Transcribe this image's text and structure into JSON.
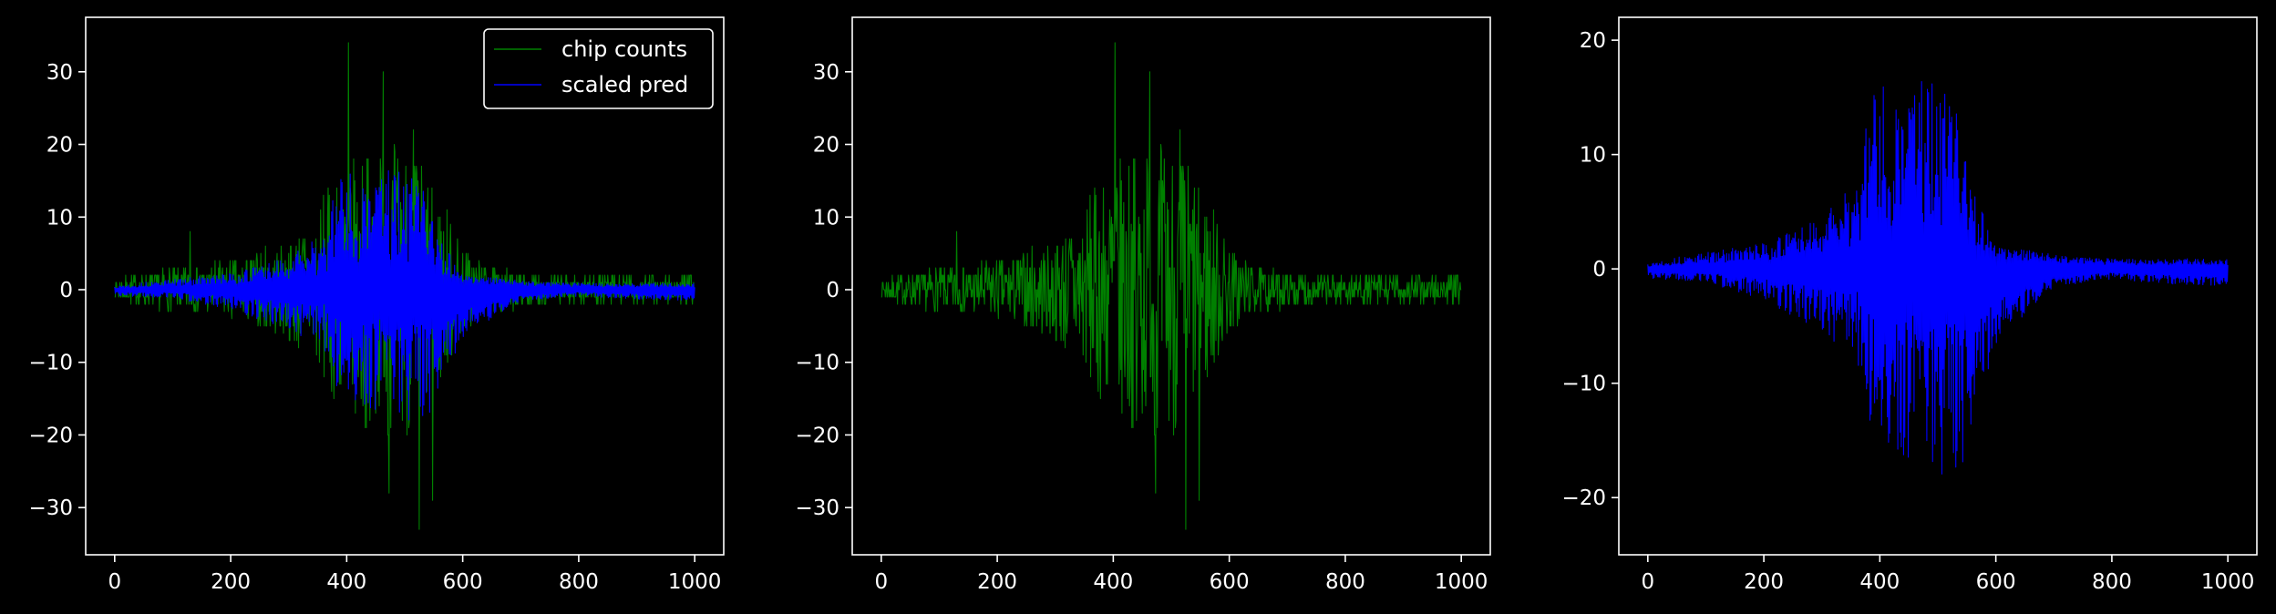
{
  "figure": {
    "background": "#000000",
    "foreground": "#ffffff"
  },
  "legend": {
    "placement": "top-right of first panel",
    "entries": [
      {
        "label": "chip counts",
        "color": "#008000"
      },
      {
        "label": "scaled pred",
        "color": "#0000ff"
      }
    ]
  },
  "chart_data": [
    {
      "type": "line",
      "panel": 1,
      "grid": false,
      "title": "",
      "xlabel": "",
      "ylabel": "",
      "x": {
        "start": 0,
        "end": 1000,
        "count": 1001
      },
      "xlim": [
        -50,
        1050
      ],
      "ylim": [
        -36.5,
        37.5
      ],
      "xticks": [
        0,
        200,
        400,
        600,
        800,
        1000
      ],
      "yticks": [
        -30,
        -20,
        -10,
        0,
        10,
        20,
        30
      ],
      "ytick_labels": [
        "−30",
        "−20",
        "−10",
        "0",
        "10",
        "20",
        "30"
      ],
      "series": [
        {
          "name": "chip counts",
          "color": "#008000",
          "kind": "noisy-counts",
          "envelope_knots_x": [
            0,
            100,
            200,
            300,
            350,
            400,
            450,
            500,
            550,
            600,
            650,
            700,
            800,
            900,
            1000
          ],
          "envelope_knots_y": [
            1.5,
            3,
            4,
            7,
            12,
            18,
            20,
            21,
            16,
            6,
            3,
            2.5,
            2,
            2,
            2
          ],
          "peaks": [
            {
              "x": 403,
              "y": 34
            },
            {
              "x": 463,
              "y": 30
            },
            {
              "x": 515,
              "y": 22
            },
            {
              "x": 473,
              "y": -28
            },
            {
              "x": 525,
              "y": -33
            },
            {
              "x": 548,
              "y": -29
            },
            {
              "x": 440,
              "y": -18
            },
            {
              "x": 130,
              "y": 8
            }
          ]
        },
        {
          "name": "scaled pred",
          "color": "#0000ff",
          "kind": "two-strand-prediction",
          "upper_knots_x": [
            0,
            100,
            200,
            300,
            360,
            380,
            420,
            480,
            540,
            560,
            600,
            700,
            800,
            900,
            1000
          ],
          "upper_knots_y": [
            0.3,
            0.8,
            1.2,
            2.5,
            4,
            7.5,
            8,
            8.5,
            7,
            4,
            1.2,
            0.8,
            0.5,
            0.5,
            0.5
          ],
          "lower_knots_x": [
            0,
            100,
            200,
            300,
            360,
            380,
            420,
            480,
            540,
            560,
            600,
            700,
            800,
            900,
            1000
          ],
          "lower_knots_y": [
            -0.5,
            -0.6,
            -1.5,
            -3,
            -4,
            -7,
            -8,
            -9,
            -9,
            -8,
            -4,
            -1,
            -0.5,
            -0.8,
            -1
          ],
          "upper_noise_knots_y": [
            0.2,
            0.5,
            0.8,
            1.5,
            3,
            6,
            7,
            6.5,
            6,
            3,
            0.6,
            0.4,
            0.3,
            0.3,
            0.3
          ],
          "lower_noise_knots_y": [
            0.3,
            0.4,
            1,
            2,
            3,
            5,
            6,
            7,
            7,
            4,
            2,
            0.4,
            0.3,
            0.4,
            0.4
          ]
        }
      ]
    },
    {
      "type": "line",
      "panel": 2,
      "grid": false,
      "title": "",
      "xlabel": "",
      "ylabel": "",
      "x": {
        "start": 0,
        "end": 1000,
        "count": 1001
      },
      "xlim": [
        -50,
        1050
      ],
      "ylim": [
        -36.5,
        37.5
      ],
      "xticks": [
        0,
        200,
        400,
        600,
        800,
        1000
      ],
      "yticks": [
        -30,
        -20,
        -10,
        0,
        10,
        20,
        30
      ],
      "ytick_labels": [
        "−30",
        "−20",
        "−10",
        "0",
        "10",
        "20",
        "30"
      ],
      "series": [
        {
          "ref": "chip counts",
          "color": "#008000"
        }
      ]
    },
    {
      "type": "line",
      "panel": 3,
      "grid": false,
      "title": "",
      "xlabel": "",
      "ylabel": "",
      "x": {
        "start": 0,
        "end": 1000,
        "count": 1001
      },
      "xlim": [
        -50,
        1050
      ],
      "ylim": [
        -25,
        22
      ],
      "xticks": [
        0,
        200,
        400,
        600,
        800,
        1000
      ],
      "yticks": [
        -20,
        -10,
        0,
        10,
        20
      ],
      "ytick_labels": [
        "−20",
        "−10",
        "0",
        "10",
        "20"
      ],
      "series": [
        {
          "ref": "scaled pred",
          "color": "#0000ff"
        }
      ]
    }
  ]
}
